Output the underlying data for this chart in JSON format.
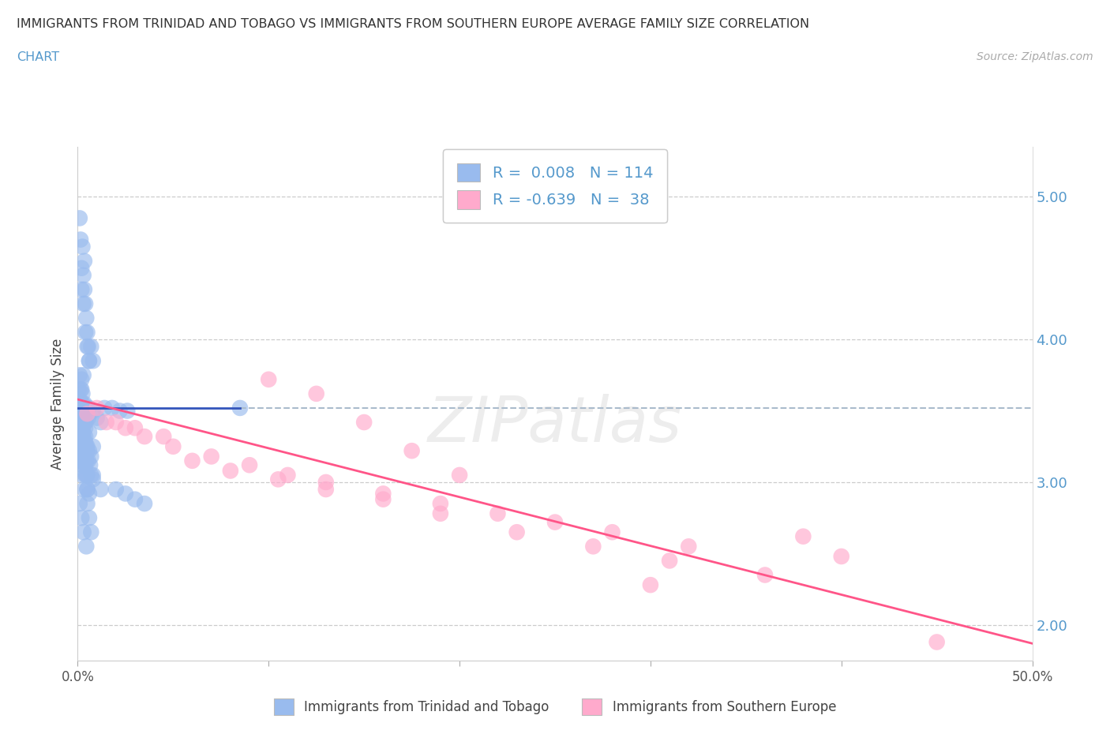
{
  "title_line1": "IMMIGRANTS FROM TRINIDAD AND TOBAGO VS IMMIGRANTS FROM SOUTHERN EUROPE AVERAGE FAMILY SIZE CORRELATION",
  "title_line2": "CHART",
  "source": "Source: ZipAtlas.com",
  "ylabel": "Average Family Size",
  "yticks": [
    2.0,
    3.0,
    4.0,
    5.0
  ],
  "ytick_labels": [
    "2.00",
    "3.00",
    "4.00",
    "5.00"
  ],
  "xmin": 0.0,
  "xmax": 50.0,
  "ymin": 1.75,
  "ymax": 5.35,
  "legend1_r": "0.008",
  "legend1_n": "114",
  "legend2_r": "-0.639",
  "legend2_n": "38",
  "color_blue": "#99BBEE",
  "color_pink": "#FFAACC",
  "color_blue_line": "#3355BB",
  "color_pink_line": "#FF5588",
  "color_dashed": "#AABBCC",
  "color_r_value": "#5599CC",
  "legend_label1": "Immigrants from Trinidad and Tobago",
  "legend_label2": "Immigrants from Southern Europe",
  "watermark": "ZIPatlas",
  "blue_scatter_x": [
    0.15,
    0.2,
    0.25,
    0.3,
    0.35,
    0.4,
    0.45,
    0.5,
    0.55,
    0.6,
    0.2,
    0.3,
    0.4,
    0.5,
    0.6,
    0.7,
    0.8,
    0.1,
    0.2,
    0.3,
    0.15,
    0.25,
    0.35,
    0.45,
    0.55,
    0.2,
    0.3,
    0.4,
    0.1,
    0.35,
    0.6,
    0.8,
    1.0,
    1.2,
    0.05,
    0.1,
    0.2,
    0.3,
    0.4,
    0.5,
    0.1,
    0.2,
    0.3,
    0.4,
    0.5,
    0.6,
    0.7,
    0.05,
    0.15,
    0.25,
    1.4,
    1.8,
    2.2,
    2.6,
    0.2,
    0.25,
    0.3,
    0.35,
    0.4,
    0.45,
    0.1,
    0.2,
    0.25,
    0.3,
    0.4,
    0.5,
    0.55,
    0.65,
    0.7,
    0.8,
    0.05,
    0.15,
    0.2,
    0.3,
    0.35,
    0.45,
    0.5,
    0.6,
    0.1,
    0.2,
    8.5,
    0.25,
    0.3,
    0.4,
    0.5,
    0.15,
    0.2,
    0.3,
    0.35,
    0.45,
    2.0,
    2.5,
    3.0,
    3.5,
    0.8,
    1.2,
    0.2,
    0.4,
    0.6,
    0.8,
    0.15,
    0.25,
    0.35,
    0.5,
    0.6,
    0.7,
    0.2,
    0.3,
    0.4,
    0.5,
    0.1,
    0.2,
    0.3,
    0.45
  ],
  "blue_scatter_y": [
    4.7,
    4.5,
    4.65,
    4.45,
    4.35,
    4.25,
    4.15,
    4.05,
    3.95,
    3.85,
    4.35,
    4.25,
    4.05,
    3.95,
    3.85,
    3.95,
    3.85,
    3.75,
    3.65,
    3.75,
    3.65,
    3.55,
    3.55,
    3.5,
    3.45,
    3.5,
    3.45,
    3.38,
    4.85,
    4.55,
    3.52,
    3.5,
    3.45,
    3.42,
    3.65,
    3.58,
    3.48,
    3.52,
    3.42,
    3.52,
    3.35,
    3.32,
    3.3,
    3.28,
    3.25,
    3.22,
    3.18,
    3.22,
    3.15,
    3.12,
    3.52,
    3.52,
    3.5,
    3.5,
    3.72,
    3.62,
    3.52,
    3.42,
    3.32,
    3.25,
    3.48,
    3.42,
    3.38,
    3.32,
    3.25,
    3.22,
    3.15,
    3.12,
    3.05,
    3.02,
    3.52,
    3.42,
    3.35,
    3.25,
    3.15,
    3.05,
    2.95,
    2.92,
    3.42,
    3.35,
    3.52,
    3.22,
    3.15,
    3.05,
    2.95,
    3.52,
    3.42,
    3.35,
    3.25,
    3.15,
    2.95,
    2.92,
    2.88,
    2.85,
    3.05,
    2.95,
    3.52,
    3.42,
    3.35,
    3.25,
    3.15,
    3.05,
    2.95,
    2.85,
    2.75,
    2.65,
    3.32,
    3.22,
    3.12,
    3.05,
    2.85,
    2.75,
    2.65,
    2.55
  ],
  "pink_scatter_x": [
    0.5,
    1.5,
    2.5,
    3.5,
    5.0,
    7.0,
    9.0,
    11.0,
    13.0,
    16.0,
    19.0,
    22.0,
    25.0,
    28.0,
    32.0,
    10.0,
    12.5,
    15.0,
    17.5,
    20.0,
    6.0,
    8.0,
    10.5,
    13.0,
    16.0,
    19.0,
    23.0,
    27.0,
    31.0,
    36.0,
    40.0,
    45.0,
    1.0,
    2.0,
    3.0,
    4.5,
    30.0,
    38.0
  ],
  "pink_scatter_y": [
    3.48,
    3.42,
    3.38,
    3.32,
    3.25,
    3.18,
    3.12,
    3.05,
    3.0,
    2.92,
    2.85,
    2.78,
    2.72,
    2.65,
    2.55,
    3.72,
    3.62,
    3.42,
    3.22,
    3.05,
    3.15,
    3.08,
    3.02,
    2.95,
    2.88,
    2.78,
    2.65,
    2.55,
    2.45,
    2.35,
    2.48,
    1.88,
    3.52,
    3.42,
    3.38,
    3.32,
    2.28,
    2.62
  ],
  "blue_line_x": [
    0.0,
    8.5
  ],
  "blue_line_y": [
    3.52,
    3.52
  ],
  "blue_line2_x": [
    8.5,
    50.0
  ],
  "blue_line2_y": [
    3.52,
    3.52
  ],
  "pink_line_x": [
    0.0,
    50.0
  ],
  "pink_line_y": [
    3.58,
    1.87
  ]
}
